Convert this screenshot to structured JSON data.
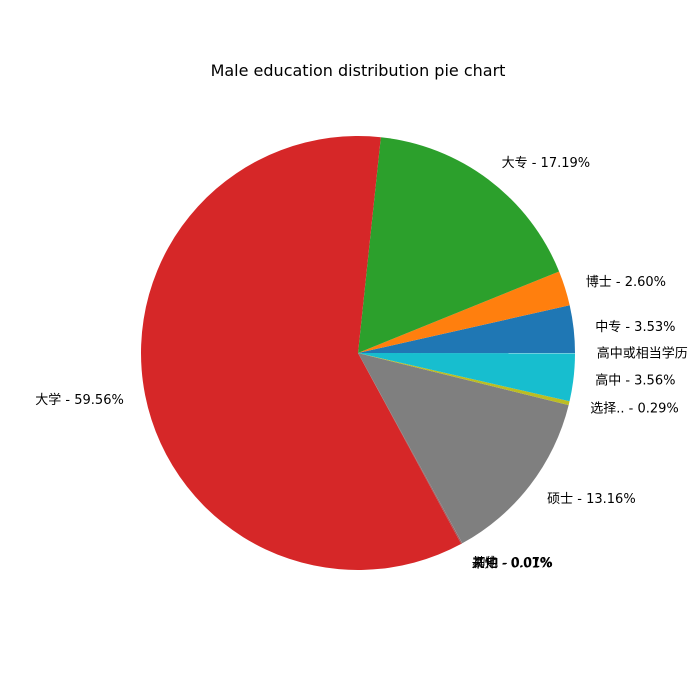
{
  "chart_data": {
    "type": "pie",
    "title": "Male education distribution pie chart",
    "start_angle_deg": 0,
    "direction": "counterclockwise",
    "slices": [
      {
        "label": "中专 - 3.53%",
        "value": 3.53,
        "color": "#1f77b4"
      },
      {
        "label": "博士 - 2.60%",
        "value": 2.6,
        "color": "#ff7f0e"
      },
      {
        "label": "大专 - 17.19%",
        "value": 17.19,
        "color": "#2ca02c"
      },
      {
        "label": "大学 - 59.56%",
        "value": 59.56,
        "color": "#d62728"
      },
      {
        "label": "未知 - 0.01%",
        "value": 0.01,
        "color": "#9467bd"
      },
      {
        "label": "其他 - 0.07%",
        "value": 0.07,
        "color": "#8c564b"
      },
      {
        "label": "初中 - 0.01%",
        "value": 0.01,
        "color": "#e377c2"
      },
      {
        "label": "硕士 - 13.16%",
        "value": 13.16,
        "color": "#7f7f7f"
      },
      {
        "label": "选择.. - 0.29%",
        "value": 0.29,
        "color": "#bcbd22"
      },
      {
        "label": "高中 - 3.56%",
        "value": 3.56,
        "color": "#17becf"
      },
      {
        "label": "高中或相当学历",
        "value": 0.01,
        "color": "#1f77b4"
      }
    ]
  }
}
